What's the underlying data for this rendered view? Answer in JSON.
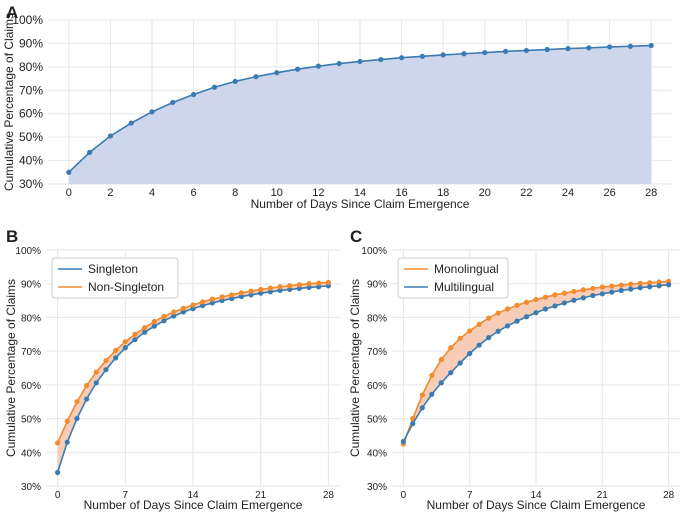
{
  "colors": {
    "blue": "#3a7bb3",
    "orange": "#f28a2e",
    "fill_blue": "#cdd6ea",
    "fill_orange": "#f6c4aa",
    "grid": "#e6e6e6",
    "text": "#222222"
  },
  "chart_data": [
    {
      "panel_label": "A",
      "type": "area",
      "xlabel": "Number of Days Since Claim Emergence",
      "ylabel": "Cumulative Percentage of Claims",
      "xlim": [
        -1,
        29
      ],
      "ylim": [
        30,
        100
      ],
      "xticks": [
        0,
        2,
        4,
        6,
        8,
        10,
        12,
        14,
        16,
        18,
        20,
        22,
        24,
        26,
        28
      ],
      "yticks": [
        30,
        40,
        50,
        60,
        70,
        80,
        90,
        100
      ],
      "ytick_format": "percent",
      "grid": true,
      "series": [
        {
          "color": "#3a7bb3",
          "fill_color": "#cdd6ea",
          "x": [
            0,
            1,
            2,
            3,
            4,
            5,
            6,
            7,
            8,
            9,
            10,
            11,
            12,
            13,
            14,
            15,
            16,
            17,
            18,
            19,
            20,
            21,
            22,
            23,
            24,
            25,
            26,
            27,
            28
          ],
          "values": [
            35.0,
            43.5,
            50.5,
            56.0,
            60.8,
            64.8,
            68.2,
            71.3,
            73.8,
            75.8,
            77.5,
            79.0,
            80.3,
            81.4,
            82.3,
            83.1,
            83.9,
            84.5,
            85.1,
            85.6,
            86.1,
            86.6,
            87.0,
            87.4,
            87.8,
            88.1,
            88.5,
            88.8,
            89.1
          ]
        }
      ]
    },
    {
      "panel_label": "B",
      "type": "line",
      "xlabel": "Number of Days Since Claim Emergence",
      "ylabel": "Cumulative Percentage of Claims",
      "xlim": [
        -1.2,
        29.2
      ],
      "ylim": [
        30,
        100
      ],
      "xticks": [
        0,
        7,
        14,
        21,
        28
      ],
      "yticks": [
        30,
        40,
        50,
        60,
        70,
        80,
        90,
        100
      ],
      "ytick_format": "percent",
      "grid": true,
      "legend_position": "top-left",
      "band_fill": "#f6c4aa",
      "series": [
        {
          "name": "Singleton",
          "color": "#3a7bb3",
          "x": [
            0,
            1,
            2,
            3,
            4,
            5,
            6,
            7,
            8,
            9,
            10,
            11,
            12,
            13,
            14,
            15,
            16,
            17,
            18,
            19,
            20,
            21,
            22,
            23,
            24,
            25,
            26,
            27,
            28
          ],
          "values": [
            34.0,
            43.0,
            50.0,
            55.8,
            60.6,
            64.5,
            68.0,
            71.0,
            73.4,
            75.6,
            77.4,
            79.0,
            80.4,
            81.6,
            82.6,
            83.5,
            84.3,
            85.0,
            85.6,
            86.2,
            86.7,
            87.2,
            87.6,
            88.0,
            88.3,
            88.6,
            88.9,
            89.1,
            89.4
          ]
        },
        {
          "name": "Non-Singleton",
          "color": "#f28a2e",
          "x": [
            0,
            1,
            2,
            3,
            4,
            5,
            6,
            7,
            8,
            9,
            10,
            11,
            12,
            13,
            14,
            15,
            16,
            17,
            18,
            19,
            20,
            21,
            22,
            23,
            24,
            25,
            26,
            27,
            28
          ],
          "values": [
            42.8,
            49.2,
            55.0,
            59.8,
            63.8,
            67.2,
            70.2,
            72.8,
            75.0,
            77.0,
            78.8,
            80.3,
            81.6,
            82.7,
            83.7,
            84.6,
            85.4,
            86.1,
            86.7,
            87.3,
            87.8,
            88.3,
            88.7,
            89.1,
            89.4,
            89.7,
            90.0,
            90.2,
            90.4
          ]
        }
      ]
    },
    {
      "panel_label": "C",
      "type": "line",
      "xlabel": "Number of Days Since Claim Emergence",
      "ylabel": "Cumulative Percentage of Claims",
      "xlim": [
        -1.2,
        29.2
      ],
      "ylim": [
        30,
        100
      ],
      "xticks": [
        0,
        7,
        14,
        21,
        28
      ],
      "yticks": [
        30,
        40,
        50,
        60,
        70,
        80,
        90,
        100
      ],
      "ytick_format": "percent",
      "grid": true,
      "legend_position": "top-left",
      "band_fill": "#f6c4aa",
      "series": [
        {
          "name": "Monolingual",
          "color": "#f28a2e",
          "x": [
            0,
            1,
            2,
            3,
            4,
            5,
            6,
            7,
            8,
            9,
            10,
            11,
            12,
            13,
            14,
            15,
            16,
            17,
            18,
            19,
            20,
            21,
            22,
            23,
            24,
            25,
            26,
            27,
            28
          ],
          "values": [
            42.5,
            50.0,
            57.0,
            62.8,
            67.5,
            71.0,
            73.8,
            76.0,
            78.0,
            79.8,
            81.3,
            82.5,
            83.6,
            84.5,
            85.3,
            86.0,
            86.7,
            87.2,
            87.7,
            88.2,
            88.6,
            89.0,
            89.3,
            89.6,
            89.9,
            90.1,
            90.3,
            90.5,
            90.7
          ]
        },
        {
          "name": "Multilingual",
          "color": "#3a7bb3",
          "x": [
            0,
            1,
            2,
            3,
            4,
            5,
            6,
            7,
            8,
            9,
            10,
            11,
            12,
            13,
            14,
            15,
            16,
            17,
            18,
            19,
            20,
            21,
            22,
            23,
            24,
            25,
            26,
            27,
            28
          ],
          "values": [
            43.2,
            48.5,
            53.2,
            57.2,
            60.6,
            63.6,
            66.5,
            69.3,
            71.8,
            74.0,
            75.9,
            77.5,
            78.9,
            80.2,
            81.4,
            82.5,
            83.4,
            84.3,
            85.1,
            85.8,
            86.5,
            87.0,
            87.5,
            88.0,
            88.4,
            88.8,
            89.1,
            89.4,
            89.7
          ]
        }
      ]
    }
  ]
}
